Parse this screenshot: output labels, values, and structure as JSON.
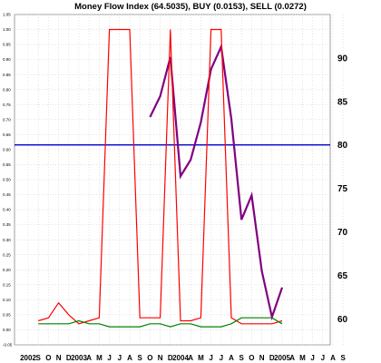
{
  "chart_data": {
    "type": "line",
    "title": "Money Flow Index (64.5035), BUY (0.0153), SELL (0.0272)",
    "grid": true,
    "x_tick_labels": [
      "2002",
      "S",
      "O",
      "N",
      "D",
      "2003",
      "A",
      "M",
      "J",
      "J",
      "A",
      "S",
      "O",
      "N",
      "D",
      "2004",
      "A",
      "M",
      "J",
      "J",
      "A",
      "S",
      "O",
      "N",
      "D",
      "2005",
      "A",
      "M",
      "J",
      "J",
      "A",
      "S"
    ],
    "left_axis": {
      "range": [
        -0.05,
        1.05
      ],
      "tick_labels": [
        "-0.05",
        "0.00",
        "0.05",
        "0.10",
        "0.15",
        "0.20",
        "0.25",
        "0.30",
        "0.35",
        "0.40",
        "0.45",
        "0.50",
        "0.55",
        "0.60",
        "0.65",
        "0.70",
        "0.75",
        "0.80",
        "0.85",
        "0.90",
        "0.95",
        "1.00",
        "1.05"
      ]
    },
    "right_axis": {
      "range": [
        57,
        95
      ],
      "tick_labels": [
        "60",
        "65",
        "70",
        "75",
        "80",
        "85",
        "90"
      ],
      "reference_line": 80
    },
    "series": [
      {
        "axis": "right",
        "color": "#800080",
        "x": [
          "2003-08",
          "2003-09",
          "2003-10",
          "2003-11",
          "2003-12",
          "2004-01",
          "2004-02",
          "2004-03",
          "2004-04",
          "2004-05",
          "2004-06",
          "2004-07",
          "2004-08",
          "2004-09"
        ],
        "values": [
          83.2,
          85.6,
          90.1,
          76.4,
          78.3,
          82.6,
          88.7,
          91.3,
          83.0,
          71.4,
          74.2,
          65.5,
          60.2,
          63.6
        ]
      },
      {
        "axis": "left",
        "color": "#ff0000",
        "x": [
          "2002-09",
          "2002-10",
          "2002-11",
          "2002-12",
          "2003-01",
          "2003-02",
          "2003-03",
          "2003-04",
          "2003-05",
          "2003-06",
          "2003-07",
          "2003-08",
          "2003-09",
          "2003-10",
          "2003-11",
          "2003-12",
          "2004-01",
          "2004-02",
          "2004-03",
          "2004-04",
          "2004-05",
          "2004-06",
          "2004-07",
          "2004-08",
          "2004-09"
        ],
        "values": [
          0.03,
          0.04,
          0.09,
          0.05,
          0.02,
          0.03,
          0.04,
          1.0,
          1.0,
          1.0,
          0.04,
          0.04,
          0.04,
          1.0,
          0.03,
          0.03,
          0.04,
          1.0,
          1.0,
          0.04,
          0.02,
          0.02,
          0.02,
          0.02,
          0.03
        ]
      },
      {
        "axis": "left",
        "color": "#008000",
        "x": [
          "2002-09",
          "2002-10",
          "2002-11",
          "2002-12",
          "2003-01",
          "2003-02",
          "2003-03",
          "2003-04",
          "2003-05",
          "2003-06",
          "2003-07",
          "2003-08",
          "2003-09",
          "2003-10",
          "2003-11",
          "2003-12",
          "2004-01",
          "2004-02",
          "2004-03",
          "2004-04",
          "2004-05",
          "2004-06",
          "2004-07",
          "2004-08",
          "2004-09"
        ],
        "values": [
          0.02,
          0.02,
          0.02,
          0.02,
          0.03,
          0.02,
          0.02,
          0.01,
          0.01,
          0.01,
          0.01,
          0.02,
          0.02,
          0.01,
          0.02,
          0.02,
          0.01,
          0.01,
          0.01,
          0.02,
          0.04,
          0.04,
          0.04,
          0.04,
          0.02
        ]
      }
    ]
  }
}
